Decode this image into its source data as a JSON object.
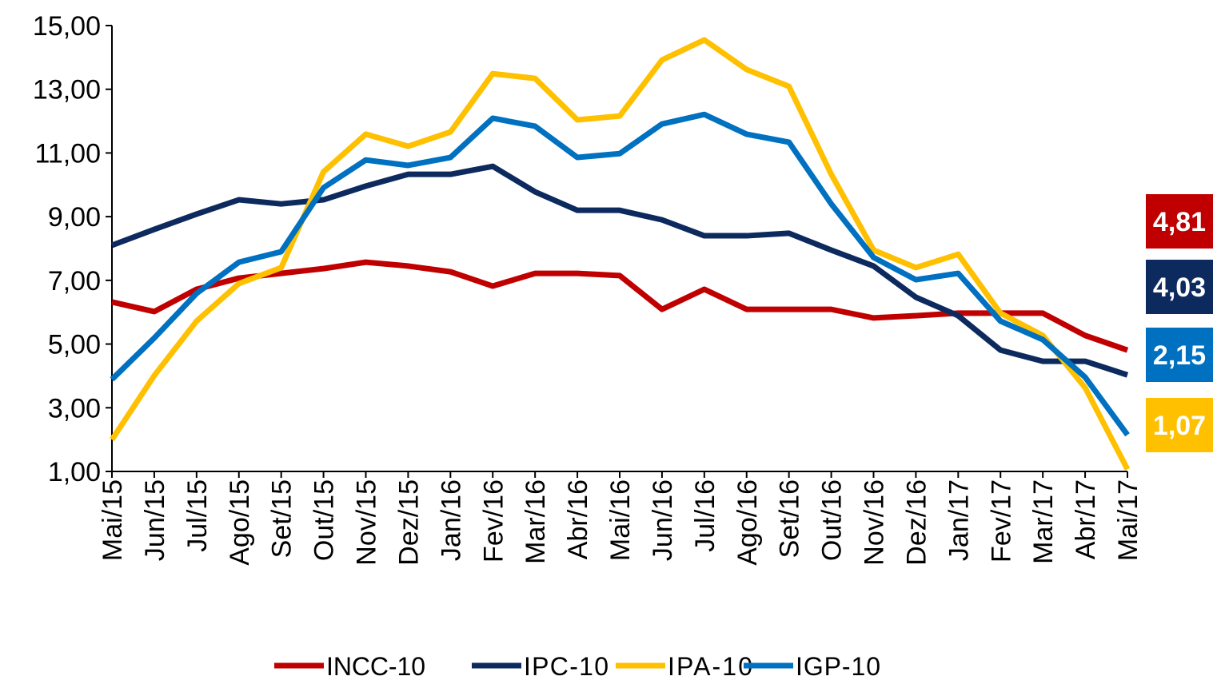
{
  "chart_data": {
    "type": "line",
    "categories": [
      "Mai/15",
      "Jun/15",
      "Jul/15",
      "Ago/15",
      "Set/15",
      "Out/15",
      "Nov/15",
      "Dez/15",
      "Jan/16",
      "Fev/16",
      "Mar/16",
      "Abr/16",
      "Mai/16",
      "Jun/16",
      "Jul/16",
      "Ago/16",
      "Set/16",
      "Out/16",
      "Nov/16",
      "Dez/16",
      "Jan/17",
      "Fev/17",
      "Mar/17",
      "Abr/17",
      "Mai/17"
    ],
    "series": [
      {
        "name": "INCC-10",
        "color": "#c00000",
        "values": [
          6.32,
          6.02,
          6.72,
          7.07,
          7.22,
          7.37,
          7.57,
          7.45,
          7.27,
          6.82,
          7.22,
          7.22,
          7.15,
          6.09,
          6.72,
          6.09,
          6.09,
          6.09,
          5.82,
          5.89,
          5.97,
          5.97,
          5.97,
          5.27,
          4.81
        ],
        "value_labels": [
          null,
          null,
          null,
          null,
          null,
          null,
          null,
          null,
          null,
          null,
          null,
          null,
          null,
          null,
          null,
          null,
          null,
          null,
          null,
          null,
          null,
          null,
          null,
          null,
          "4,81"
        ]
      },
      {
        "name": "IPC-10",
        "color": "#0d2a5e",
        "values": [
          8.1,
          8.6,
          9.08,
          9.53,
          9.4,
          9.53,
          9.96,
          10.33,
          10.33,
          10.58,
          9.78,
          9.2,
          9.2,
          8.9,
          8.4,
          8.4,
          8.48,
          7.95,
          7.45,
          6.47,
          5.89,
          4.81,
          4.46,
          4.46,
          4.03
        ],
        "value_labels": [
          null,
          null,
          null,
          null,
          null,
          null,
          null,
          null,
          null,
          null,
          null,
          null,
          null,
          null,
          null,
          null,
          null,
          null,
          null,
          null,
          null,
          null,
          null,
          null,
          "4,03"
        ]
      },
      {
        "name": "IPA-10",
        "color": "#ffc000",
        "values": [
          2.0,
          4.01,
          5.72,
          6.9,
          7.4,
          10.41,
          11.59,
          11.21,
          11.66,
          13.49,
          13.34,
          12.04,
          12.16,
          13.92,
          14.55,
          13.62,
          13.09,
          10.33,
          7.95,
          7.4,
          7.82,
          5.97,
          5.27,
          3.63,
          1.07
        ],
        "value_labels": [
          null,
          null,
          null,
          null,
          null,
          null,
          null,
          null,
          null,
          null,
          null,
          null,
          null,
          null,
          null,
          null,
          null,
          null,
          null,
          null,
          null,
          null,
          null,
          null,
          "1,07"
        ]
      },
      {
        "name": "IGP-10",
        "color": "#0070c0",
        "values": [
          3.89,
          5.19,
          6.59,
          7.57,
          7.9,
          9.91,
          10.78,
          10.61,
          10.86,
          12.09,
          11.84,
          10.86,
          10.98,
          11.91,
          12.21,
          11.59,
          11.34,
          9.4,
          7.72,
          7.02,
          7.22,
          5.72,
          5.14,
          3.96,
          2.15
        ],
        "value_labels": [
          null,
          null,
          null,
          null,
          null,
          null,
          null,
          null,
          null,
          null,
          null,
          null,
          null,
          null,
          null,
          null,
          null,
          null,
          null,
          null,
          null,
          null,
          null,
          null,
          "2,15"
        ]
      }
    ],
    "ylim": [
      1,
      15
    ],
    "yticks": [
      {
        "value": 1,
        "label": "1,00"
      },
      {
        "value": 3,
        "label": "3,00"
      },
      {
        "value": 5,
        "label": "5,00"
      },
      {
        "value": 7,
        "label": "7,00"
      },
      {
        "value": 9,
        "label": "9,00"
      },
      {
        "value": 11,
        "label": "11,00"
      },
      {
        "value": 13,
        "label": "13,00"
      },
      {
        "value": 15,
        "label": "15,00"
      }
    ],
    "grid": false,
    "legend": "bottom"
  }
}
